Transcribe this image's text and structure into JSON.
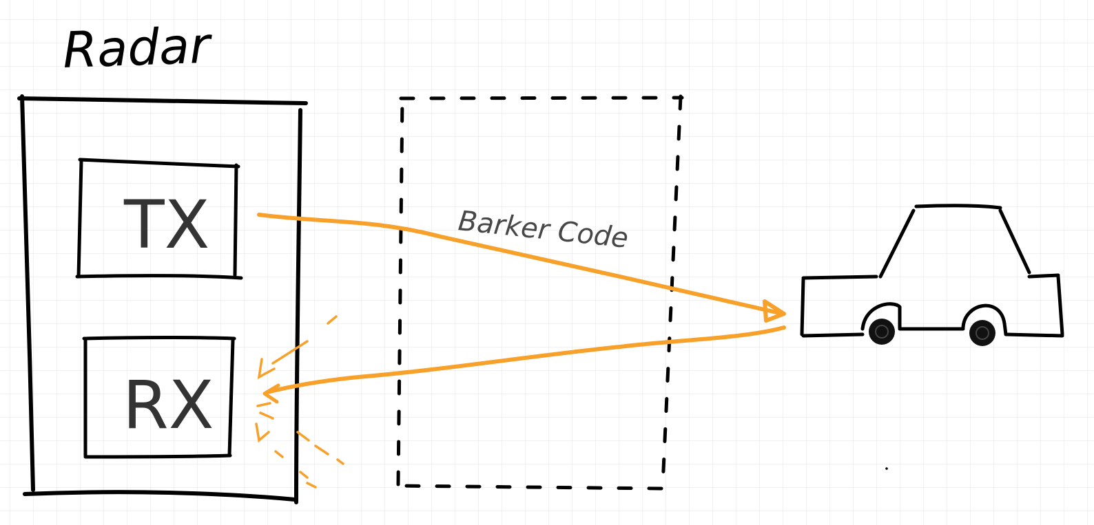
{
  "diagram": {
    "title": "Radar",
    "transmitter_label": "TX",
    "receiver_label": "RX",
    "signal_label": "Barker Code",
    "colors": {
      "ink": "#000000",
      "signal": "#f7a12a",
      "grid": "#e3e3e3",
      "background": "#ffffff"
    },
    "icons": [
      "car-icon",
      "arrow-head-icon"
    ]
  }
}
